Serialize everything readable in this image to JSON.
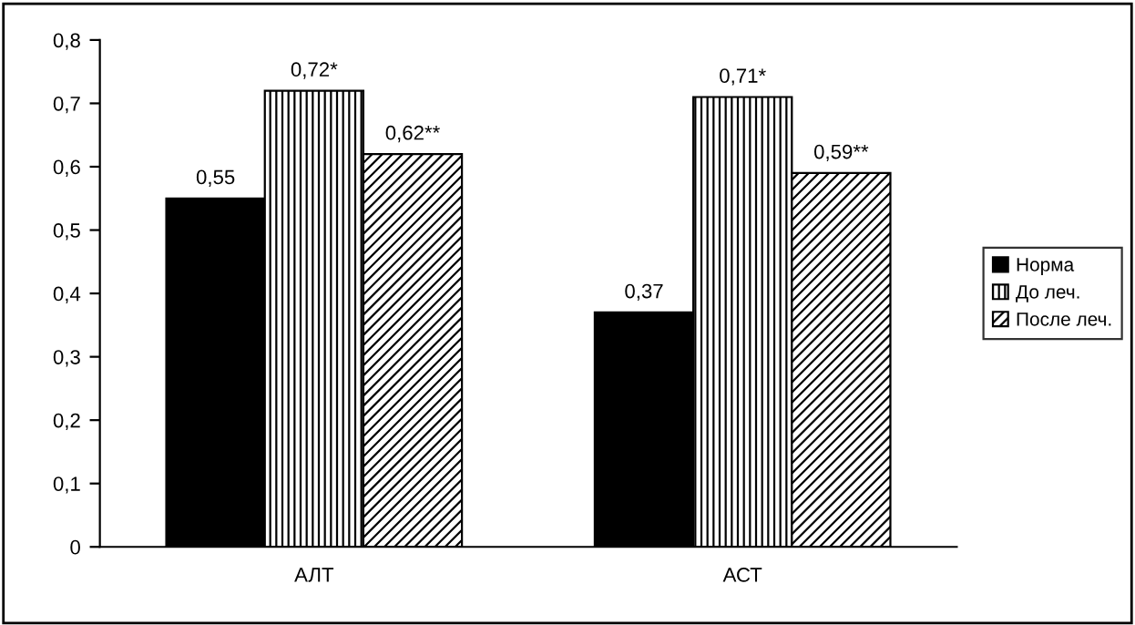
{
  "chart_data": {
    "type": "bar",
    "categories": [
      "АЛТ",
      "АСТ"
    ],
    "series": [
      {
        "name": "Норма",
        "color": "#000000",
        "values": [
          0.55,
          0.37
        ],
        "value_labels": [
          "0,55",
          "0,37"
        ]
      },
      {
        "name": "До леч.",
        "color": "#000000",
        "values": [
          0.72,
          0.71
        ],
        "value_labels": [
          "0,72*",
          "0,71*"
        ]
      },
      {
        "name": "После леч.",
        "color": "#000000",
        "values": [
          0.62,
          0.59
        ],
        "value_labels": [
          "0,62**",
          "0,59**"
        ]
      }
    ],
    "ylim": [
      0,
      0.8
    ],
    "yticks": [
      {
        "value": 0,
        "label": "0"
      },
      {
        "value": 0.1,
        "label": "0,1"
      },
      {
        "value": 0.2,
        "label": "0,2"
      },
      {
        "value": 0.3,
        "label": "0,3"
      },
      {
        "value": 0.4,
        "label": "0,4"
      },
      {
        "value": 0.5,
        "label": "0,5"
      },
      {
        "value": 0.6,
        "label": "0,6"
      },
      {
        "value": 0.7,
        "label": "0,7"
      },
      {
        "value": 0.8,
        "label": "0,8"
      }
    ],
    "grid": false,
    "legend": "right"
  }
}
